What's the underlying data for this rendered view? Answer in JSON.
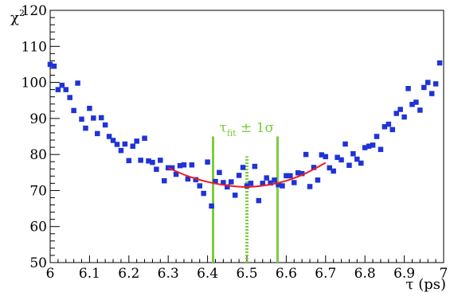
{
  "chart_data": {
    "type": "scatter",
    "title": "",
    "xlabel": "τ (ps)",
    "ylabel": "χ",
    "ylabel_sup": "2",
    "xlim": [
      6.0,
      7.0
    ],
    "ylim": [
      50,
      120
    ],
    "x_ticks": [
      "6",
      "6.1",
      "6.2",
      "6.3",
      "6.4",
      "6.5",
      "6.6",
      "6.7",
      "6.8",
      "6.9",
      "7"
    ],
    "y_ticks": [
      "50",
      "60",
      "70",
      "80",
      "90",
      "100",
      "110",
      "120"
    ],
    "grid": false,
    "series": [
      {
        "marker": "square",
        "color": "#1f33d6",
        "points": [
          [
            6.0,
            105.0
          ],
          [
            6.01,
            104.5
          ],
          [
            6.02,
            98.0
          ],
          [
            6.03,
            99.2
          ],
          [
            6.04,
            98.0
          ],
          [
            6.05,
            95.8
          ],
          [
            6.06,
            92.2
          ],
          [
            6.07,
            99.8
          ],
          [
            6.08,
            89.8
          ],
          [
            6.09,
            87.3
          ],
          [
            6.1,
            92.8
          ],
          [
            6.11,
            90.1
          ],
          [
            6.12,
            85.8
          ],
          [
            6.13,
            90.2
          ],
          [
            6.14,
            88.2
          ],
          [
            6.15,
            85.0
          ],
          [
            6.16,
            83.9
          ],
          [
            6.17,
            82.8
          ],
          [
            6.18,
            81.1
          ],
          [
            6.19,
            82.9
          ],
          [
            6.2,
            78.3
          ],
          [
            6.21,
            82.3
          ],
          [
            6.22,
            83.7
          ],
          [
            6.23,
            78.4
          ],
          [
            6.24,
            84.5
          ],
          [
            6.25,
            78.2
          ],
          [
            6.26,
            77.8
          ],
          [
            6.27,
            75.9
          ],
          [
            6.28,
            78.4
          ],
          [
            6.29,
            72.7
          ],
          [
            6.3,
            76.3
          ],
          [
            6.31,
            76.3
          ],
          [
            6.32,
            74.5
          ],
          [
            6.33,
            76.9
          ],
          [
            6.34,
            77.1
          ],
          [
            6.35,
            73.2
          ],
          [
            6.36,
            77.1
          ],
          [
            6.37,
            73.0
          ],
          [
            6.38,
            71.3
          ],
          [
            6.39,
            69.2
          ],
          [
            6.4,
            77.9
          ],
          [
            6.41,
            65.7
          ],
          [
            6.42,
            72.5
          ],
          [
            6.43,
            75.0
          ],
          [
            6.44,
            72.2
          ],
          [
            6.45,
            71.0
          ],
          [
            6.46,
            72.4
          ],
          [
            6.47,
            68.7
          ],
          [
            6.48,
            74.2
          ],
          [
            6.49,
            76.4
          ],
          [
            6.5,
            71.3
          ],
          [
            6.51,
            72.0
          ],
          [
            6.52,
            76.7
          ],
          [
            6.53,
            67.2
          ],
          [
            6.54,
            72.0
          ],
          [
            6.55,
            73.5
          ],
          [
            6.56,
            72.1
          ],
          [
            6.57,
            72.9
          ],
          [
            6.58,
            71.6
          ],
          [
            6.59,
            71.3
          ],
          [
            6.6,
            74.1
          ],
          [
            6.61,
            74.1
          ],
          [
            6.62,
            72.2
          ],
          [
            6.63,
            74.9
          ],
          [
            6.64,
            74.7
          ],
          [
            6.65,
            80.0
          ],
          [
            6.66,
            71.1
          ],
          [
            6.67,
            76.4
          ],
          [
            6.68,
            72.9
          ],
          [
            6.69,
            79.9
          ],
          [
            6.7,
            79.4
          ],
          [
            6.71,
            76.3
          ],
          [
            6.72,
            75.4
          ],
          [
            6.73,
            79.2
          ],
          [
            6.74,
            78.5
          ],
          [
            6.75,
            82.9
          ],
          [
            6.76,
            77.0
          ],
          [
            6.77,
            80.2
          ],
          [
            6.78,
            78.7
          ],
          [
            6.79,
            77.6
          ],
          [
            6.8,
            81.9
          ],
          [
            6.81,
            82.3
          ],
          [
            6.82,
            82.6
          ],
          [
            6.83,
            85.0
          ],
          [
            6.84,
            81.4
          ],
          [
            6.85,
            87.7
          ],
          [
            6.86,
            88.4
          ],
          [
            6.87,
            86.9
          ],
          [
            6.88,
            91.4
          ],
          [
            6.89,
            92.5
          ],
          [
            6.9,
            90.4
          ],
          [
            6.91,
            98.3
          ],
          [
            6.92,
            93.9
          ],
          [
            6.93,
            94.5
          ],
          [
            6.94,
            92.3
          ],
          [
            6.95,
            98.6
          ],
          [
            6.96,
            100.0
          ],
          [
            6.97,
            96.9
          ],
          [
            6.98,
            99.6
          ],
          [
            6.99,
            105.4
          ]
        ]
      },
      {
        "type": "line",
        "color": "#ee1c24",
        "points": [
          [
            6.3,
            76.3
          ],
          [
            6.35,
            74.0
          ],
          [
            6.4,
            72.4
          ],
          [
            6.45,
            71.4
          ],
          [
            6.5,
            71.0
          ],
          [
            6.55,
            71.5
          ],
          [
            6.6,
            72.7
          ],
          [
            6.65,
            74.8
          ],
          [
            6.7,
            77.7
          ]
        ]
      }
    ],
    "vlines": [
      {
        "x": 6.414,
        "y_top": 85.0,
        "color": "#7ccd3c",
        "style": "solid"
      },
      {
        "x": 6.5,
        "y_top": 79.5,
        "color": "#7ccd3c",
        "style": "dotted"
      },
      {
        "x": 6.578,
        "y_top": 85.0,
        "color": "#7ccd3c",
        "style": "solid"
      }
    ],
    "annotation": {
      "tau": "τ",
      "sub": "fit",
      "rest": " ± 1σ",
      "color": "#7ccd3c",
      "x": 6.43,
      "y": 86.2
    }
  }
}
